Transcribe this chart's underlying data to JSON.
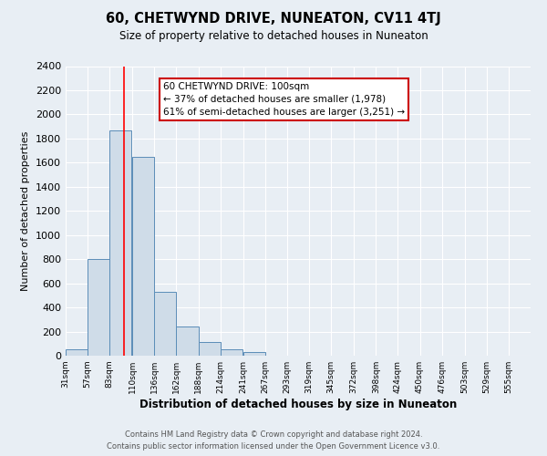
{
  "title": "60, CHETWYND DRIVE, NUNEATON, CV11 4TJ",
  "subtitle": "Size of property relative to detached houses in Nuneaton",
  "xlabel": "Distribution of detached houses by size in Nuneaton",
  "ylabel": "Number of detached properties",
  "bin_labels": [
    "31sqm",
    "57sqm",
    "83sqm",
    "110sqm",
    "136sqm",
    "162sqm",
    "188sqm",
    "214sqm",
    "241sqm",
    "267sqm",
    "293sqm",
    "319sqm",
    "345sqm",
    "372sqm",
    "398sqm",
    "424sqm",
    "450sqm",
    "476sqm",
    "503sqm",
    "529sqm",
    "555sqm"
  ],
  "bin_edges": [
    31,
    57,
    83,
    110,
    136,
    162,
    188,
    214,
    241,
    267,
    293,
    319,
    345,
    372,
    398,
    424,
    450,
    476,
    503,
    529,
    555
  ],
  "bar_heights": [
    55,
    800,
    1870,
    1650,
    530,
    240,
    110,
    50,
    30,
    0,
    0,
    0,
    0,
    0,
    0,
    0,
    0,
    0,
    0,
    0,
    0
  ],
  "bar_color": "#cfdce8",
  "bar_edge_color": "#5b8db8",
  "red_line_x": 100,
  "ylim": [
    0,
    2400
  ],
  "yticks": [
    0,
    200,
    400,
    600,
    800,
    1000,
    1200,
    1400,
    1600,
    1800,
    2000,
    2200,
    2400
  ],
  "annotation_title": "60 CHETWYND DRIVE: 100sqm",
  "annotation_line1": "← 37% of detached houses are smaller (1,978)",
  "annotation_line2": "61% of semi-detached houses are larger (3,251) →",
  "annotation_box_color": "#ffffff",
  "annotation_box_edge": "#cc0000",
  "footer1": "Contains HM Land Registry data © Crown copyright and database right 2024.",
  "footer2": "Contains public sector information licensed under the Open Government Licence v3.0.",
  "background_color": "#e8eef4",
  "plot_bg_color": "#e8eef4",
  "grid_color": "#ffffff",
  "footer_color": "#555555"
}
